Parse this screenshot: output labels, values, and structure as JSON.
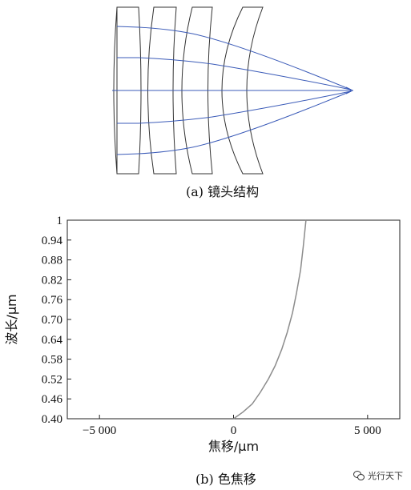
{
  "figure": {
    "lens_caption": "(a) 镜头结构",
    "chart_caption": "(b) 色焦移"
  },
  "chart_data": {
    "type": "line",
    "xlabel": "焦移/μm",
    "ylabel": "波长/μm",
    "xlim": [
      -6200,
      6200
    ],
    "ylim": [
      0.4,
      1.0
    ],
    "x_ticks": [
      -5000,
      0,
      5000
    ],
    "x_tick_labels": [
      "−5 000",
      "0",
      "5 000"
    ],
    "y_ticks": [
      0.4,
      0.46,
      0.52,
      0.58,
      0.64,
      0.7,
      0.76,
      0.82,
      0.88,
      0.94,
      1.0
    ],
    "y_tick_labels": [
      "0.40",
      "0.46",
      "0.52",
      "0.58",
      "0.64",
      "0.70",
      "0.76",
      "0.82",
      "0.88",
      "0.94",
      "1"
    ],
    "grid": false,
    "series": [
      {
        "x": [
          0,
          350,
          700,
          1000,
          1300,
          1550,
          1800,
          2000,
          2200,
          2350,
          2500,
          2600,
          2700
        ],
        "y": [
          0.4,
          0.42,
          0.445,
          0.48,
          0.52,
          0.56,
          0.61,
          0.66,
          0.72,
          0.78,
          0.85,
          0.92,
          1.0
        ]
      }
    ]
  },
  "watermark": {
    "icon": "wechat-icon",
    "text": "光行天下"
  }
}
